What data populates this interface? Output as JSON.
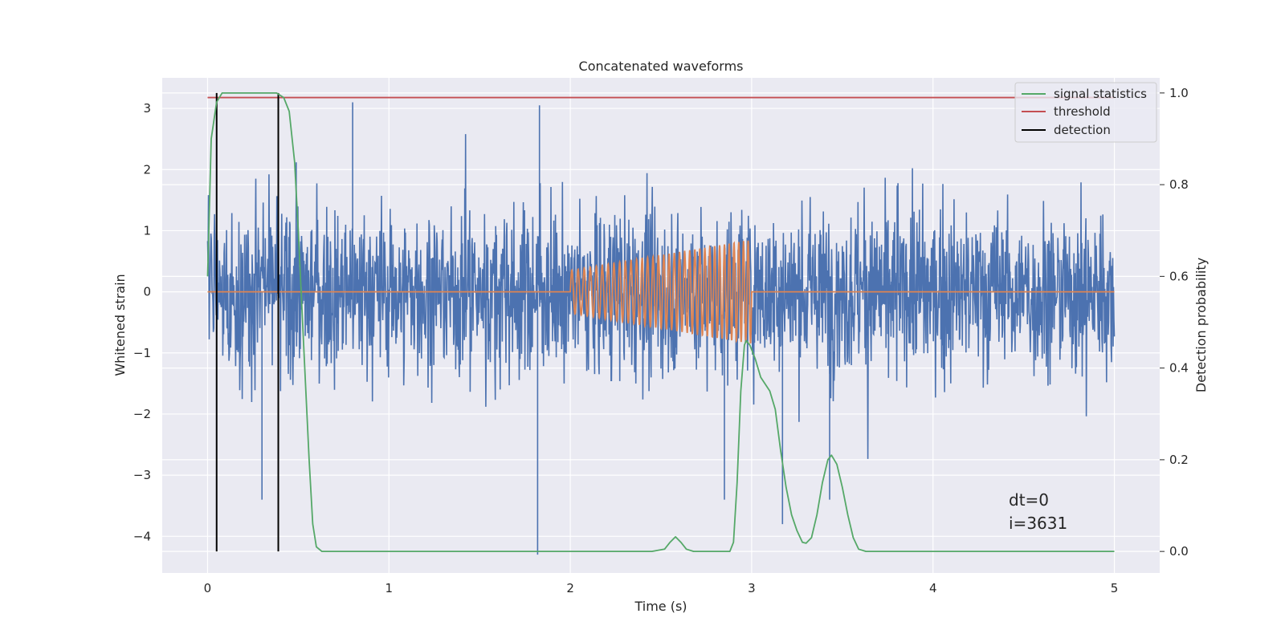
{
  "chart_data": {
    "type": "line",
    "title": "Concatenated waveforms",
    "xlabel": "Time (s)",
    "ylabel": "Whitened strain",
    "y2label": "Detection probability",
    "xlim": [
      -0.25,
      5.25
    ],
    "ylim": [
      -4.6,
      3.5
    ],
    "y2lim": [
      -0.047,
      1.033
    ],
    "xticks": [
      0,
      1,
      2,
      3,
      4,
      5
    ],
    "yticks": [
      -4,
      -3,
      -2,
      -1,
      0,
      1,
      2,
      3
    ],
    "y2ticks": [
      0.0,
      0.2,
      0.4,
      0.6,
      0.8,
      1.0
    ],
    "grid": true,
    "legend_position": "top-right",
    "colors": {
      "strain": "#4c72b0",
      "injected_waveform": "#dd8452",
      "signal_statistics": "#55a868",
      "threshold": "#c44e52",
      "detection": "#000000",
      "background": "#eaeaf2",
      "grid": "#ffffff"
    },
    "series": [
      {
        "name": "signal statistics",
        "axis": "right",
        "points": [
          [
            0.0,
            0.6
          ],
          [
            0.02,
            0.9
          ],
          [
            0.05,
            0.98
          ],
          [
            0.08,
            1.0
          ],
          [
            0.38,
            1.0
          ],
          [
            0.42,
            0.99
          ],
          [
            0.45,
            0.96
          ],
          [
            0.48,
            0.85
          ],
          [
            0.5,
            0.7
          ],
          [
            0.53,
            0.45
          ],
          [
            0.56,
            0.2
          ],
          [
            0.58,
            0.06
          ],
          [
            0.6,
            0.01
          ],
          [
            0.63,
            0.0
          ],
          [
            2.45,
            0.0
          ],
          [
            2.52,
            0.005
          ],
          [
            2.55,
            0.02
          ],
          [
            2.58,
            0.032
          ],
          [
            2.61,
            0.02
          ],
          [
            2.64,
            0.005
          ],
          [
            2.68,
            0.0
          ],
          [
            2.88,
            0.0
          ],
          [
            2.9,
            0.02
          ],
          [
            2.92,
            0.15
          ],
          [
            2.94,
            0.35
          ],
          [
            2.96,
            0.45
          ],
          [
            2.97,
            0.46
          ],
          [
            2.99,
            0.45
          ],
          [
            3.02,
            0.42
          ],
          [
            3.05,
            0.38
          ],
          [
            3.1,
            0.35
          ],
          [
            3.13,
            0.31
          ],
          [
            3.16,
            0.22
          ],
          [
            3.19,
            0.14
          ],
          [
            3.22,
            0.08
          ],
          [
            3.25,
            0.045
          ],
          [
            3.28,
            0.02
          ],
          [
            3.3,
            0.018
          ],
          [
            3.33,
            0.03
          ],
          [
            3.36,
            0.08
          ],
          [
            3.39,
            0.15
          ],
          [
            3.42,
            0.2
          ],
          [
            3.44,
            0.21
          ],
          [
            3.47,
            0.19
          ],
          [
            3.5,
            0.14
          ],
          [
            3.53,
            0.08
          ],
          [
            3.56,
            0.03
          ],
          [
            3.59,
            0.005
          ],
          [
            3.63,
            0.0
          ],
          [
            5.0,
            0.0
          ]
        ]
      },
      {
        "name": "threshold",
        "axis": "right",
        "points": [
          [
            0.0,
            0.99
          ],
          [
            5.0,
            0.99
          ]
        ]
      },
      {
        "name": "detection",
        "axis": "right",
        "segments": [
          {
            "x": 0.05,
            "y": [
              0.0,
              1.0
            ]
          },
          {
            "x": 0.39,
            "y": [
              0.0,
              1.0
            ]
          }
        ]
      }
    ],
    "noise_envelope": {
      "axis": "left",
      "x_range": [
        0,
        5
      ],
      "typical_amplitude": 1.5,
      "max_positive": 3.1,
      "min_negative": -4.3
    },
    "injected_waveform": {
      "axis": "left",
      "start": 2.0,
      "end": 3.0,
      "amplitude_start": 0.35,
      "amplitude_end": 0.85,
      "cycles": 34
    },
    "annotations": [
      "dt=0",
      "i=3631"
    ]
  }
}
